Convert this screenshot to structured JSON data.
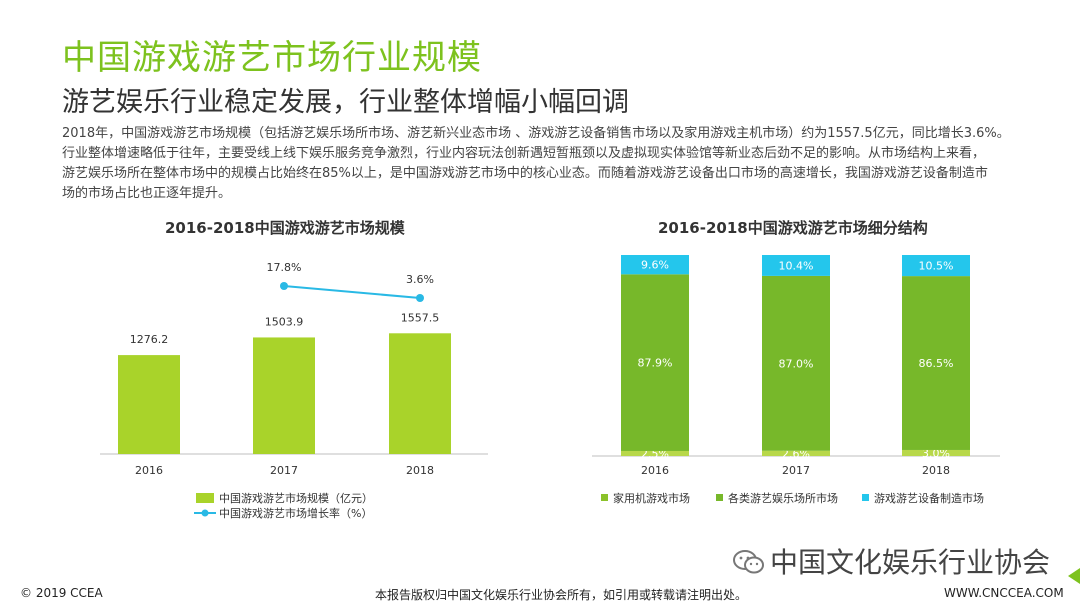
{
  "header": {
    "title": "中国游戏游艺市场行业规模",
    "subtitle": "游艺娱乐行业稳定发展，行业整体增幅小幅回调"
  },
  "body": {
    "lines": [
      "2018年，中国游戏游艺市场规模（包括游艺娱乐场所市场、游艺新兴业态市场 、游戏游艺设备销售市场以及家用游戏主机市场）约为1557.5亿元，同比增长3.6%。",
      "行业整体增速略低于往年，主要受线上线下娱乐服务竞争激烈，行业内容玩法创新遇短暂瓶颈以及虚拟现实体验馆等新业态后劲不足的影响。从市场结构上来看，",
      "游艺娱乐场所在整体市场中的规模占比始终在85%以上，是中国游戏游艺市场中的核心业态。而随着游戏游艺设备出口市场的高速增长，我国游戏游艺设备制造市",
      "场的市场占比也正逐年提升。"
    ]
  },
  "colors": {
    "accent_green": "#7dc21e",
    "bar_light_green": "#a9d32a",
    "bar_dark_green": "#77b82a",
    "bar_lime": "#b8d84a",
    "line_blue": "#29b9e5",
    "segment_blue": "#24c6ec"
  },
  "chart_data": [
    {
      "type": "bar",
      "title": "2016-2018中国游戏游艺市场规模",
      "categories": [
        "2016",
        "2017",
        "2018"
      ],
      "series": [
        {
          "name": "中国游戏游艺市场规模（亿元）",
          "kind": "bar",
          "values": [
            1276.2,
            1503.9,
            1557.5
          ],
          "labels": [
            "1276.2",
            "1503.9",
            "1557.5"
          ]
        },
        {
          "name": "中国游戏游艺市场增长率（%）",
          "kind": "line",
          "values": [
            null,
            17.8,
            3.6
          ],
          "labels": [
            "",
            "17.8%",
            "3.6%"
          ]
        }
      ],
      "legend": "bottom"
    },
    {
      "type": "bar",
      "stacked": true,
      "title": "2016-2018中国游戏游艺市场细分结构",
      "categories": [
        "2016",
        "2017",
        "2018"
      ],
      "series": [
        {
          "name": "家用机游戏市场",
          "values": [
            2.5,
            2.6,
            3.0
          ],
          "labels": [
            "2.5%",
            "2.6%",
            "3.0%"
          ]
        },
        {
          "name": "各类游艺娱乐场所市场",
          "values": [
            87.9,
            87.0,
            86.5
          ],
          "labels": [
            "87.9%",
            "87.0%",
            "86.5%"
          ]
        },
        {
          "name": "游戏游艺设备制造市场",
          "values": [
            9.6,
            10.4,
            10.5
          ],
          "labels": [
            "9.6%",
            "10.4%",
            "10.5%"
          ]
        }
      ],
      "legend": "bottom"
    }
  ],
  "footer": {
    "copyright": "© 2019 CCEA",
    "notice": "本报告版权归中国文化娱乐行业协会所有，如引用或转载请注明出处。",
    "website": "WWW.CNCCEA.COM",
    "wechat": "中国文化娱乐行业协会"
  }
}
